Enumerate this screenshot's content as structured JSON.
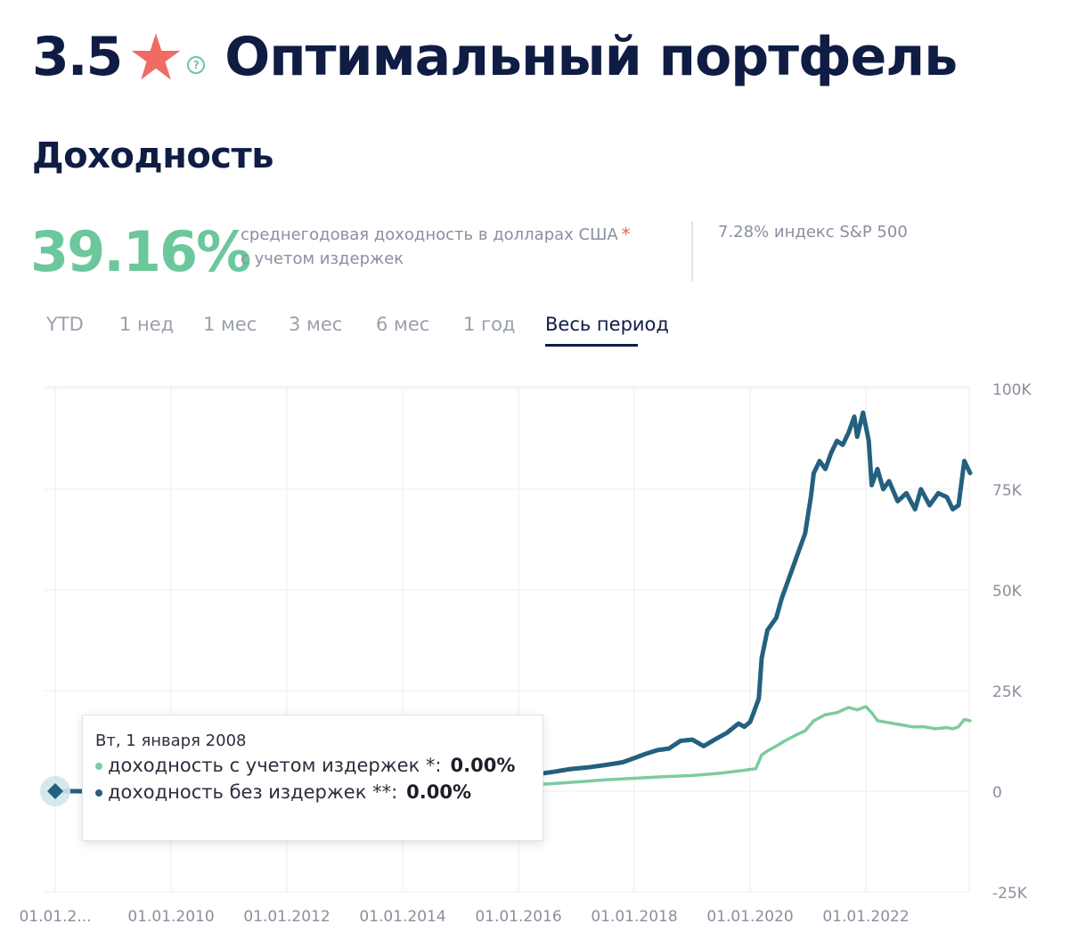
{
  "header": {
    "rating": "3.5",
    "star_icon": "star-icon",
    "help_icon": "question-icon",
    "help_glyph": "?",
    "title": "Оптимальный портфель"
  },
  "section": {
    "title": "Доходность"
  },
  "summary": {
    "yield": "39.16%",
    "desc_line1": "среднегодовая доходность в долларах США",
    "asterisk": "*",
    "desc_line2": "с учетом издержек",
    "sp_index": "7.28% индекс S&P 500"
  },
  "tabs": [
    {
      "label": "YTD"
    },
    {
      "label": "1 нед"
    },
    {
      "label": "1 мес"
    },
    {
      "label": "3 мес"
    },
    {
      "label": "6 мес"
    },
    {
      "label": "1 год"
    },
    {
      "label": "Весь период",
      "active": true
    }
  ],
  "colors": {
    "with_costs": "#7dcb9f",
    "without_costs": "#24607f",
    "star": "#ef6b63",
    "accent_green": "#6cc79c"
  },
  "tooltip": {
    "date": "Вт, 1 января 2008",
    "row1_label": "доходность с учетом издержек *:",
    "row1_value": "0.00%",
    "row2_label": "доходность без издержек **:",
    "row2_value": "0.00%"
  },
  "chart_data": {
    "type": "line",
    "x_tick_labels": [
      "01.01.2...",
      "01.01.2010",
      "01.01.2012",
      "01.01.2014",
      "01.01.2016",
      "01.01.2018",
      "01.01.2020",
      "01.01.2022"
    ],
    "x_tick_years": [
      2008,
      2010,
      2012,
      2014,
      2016,
      2018,
      2020,
      2022
    ],
    "xlim": [
      2008,
      2023.8
    ],
    "y_ticks": [
      -25000,
      0,
      25000,
      50000,
      75000,
      100000
    ],
    "y_tick_labels": [
      "-25K",
      "0",
      "25K",
      "50K",
      "75K",
      "100K"
    ],
    "ylim": [
      -25000,
      100000
    ],
    "grid": true,
    "series": [
      {
        "name": "доходность без издержек **",
        "color": "#24607f",
        "points": [
          [
            2016.0,
            3800
          ],
          [
            2016.3,
            4200
          ],
          [
            2016.6,
            4800
          ],
          [
            2016.9,
            5500
          ],
          [
            2017.2,
            5900
          ],
          [
            2017.5,
            6500
          ],
          [
            2017.8,
            7200
          ],
          [
            2018.0,
            8200
          ],
          [
            2018.2,
            9300
          ],
          [
            2018.4,
            10200
          ],
          [
            2018.6,
            10600
          ],
          [
            2018.8,
            12500
          ],
          [
            2019.0,
            12800
          ],
          [
            2019.2,
            11200
          ],
          [
            2019.4,
            12900
          ],
          [
            2019.6,
            14500
          ],
          [
            2019.8,
            16800
          ],
          [
            2019.9,
            16000
          ],
          [
            2020.0,
            17200
          ],
          [
            2020.05,
            19000
          ],
          [
            2020.15,
            23000
          ],
          [
            2020.2,
            33000
          ],
          [
            2020.3,
            40000
          ],
          [
            2020.45,
            43000
          ],
          [
            2020.55,
            48000
          ],
          [
            2020.7,
            54000
          ],
          [
            2020.85,
            60000
          ],
          [
            2020.95,
            64000
          ],
          [
            2021.05,
            73000
          ],
          [
            2021.1,
            79000
          ],
          [
            2021.2,
            82000
          ],
          [
            2021.3,
            80000
          ],
          [
            2021.4,
            84000
          ],
          [
            2021.5,
            87000
          ],
          [
            2021.6,
            86000
          ],
          [
            2021.7,
            89000
          ],
          [
            2021.8,
            93000
          ],
          [
            2021.85,
            88000
          ],
          [
            2021.95,
            94000
          ],
          [
            2022.05,
            87000
          ],
          [
            2022.1,
            76000
          ],
          [
            2022.2,
            80000
          ],
          [
            2022.3,
            75000
          ],
          [
            2022.4,
            77000
          ],
          [
            2022.55,
            72000
          ],
          [
            2022.7,
            74000
          ],
          [
            2022.85,
            70000
          ],
          [
            2022.95,
            75000
          ],
          [
            2023.1,
            71000
          ],
          [
            2023.25,
            74000
          ],
          [
            2023.4,
            73000
          ],
          [
            2023.5,
            70000
          ],
          [
            2023.6,
            71000
          ],
          [
            2023.7,
            82000
          ],
          [
            2023.8,
            79000
          ]
        ]
      },
      {
        "name": "доходность с учетом издержек *",
        "color": "#7dcb9f",
        "points": [
          [
            2016.0,
            1600
          ],
          [
            2016.5,
            1800
          ],
          [
            2017.0,
            2300
          ],
          [
            2017.5,
            2800
          ],
          [
            2018.0,
            3200
          ],
          [
            2018.5,
            3600
          ],
          [
            2019.0,
            3900
          ],
          [
            2019.5,
            4500
          ],
          [
            2019.9,
            5200
          ],
          [
            2020.1,
            5600
          ],
          [
            2020.2,
            9000
          ],
          [
            2020.3,
            10000
          ],
          [
            2020.45,
            11200
          ],
          [
            2020.6,
            12500
          ],
          [
            2020.8,
            14000
          ],
          [
            2020.95,
            15000
          ],
          [
            2021.1,
            17500
          ],
          [
            2021.3,
            19000
          ],
          [
            2021.5,
            19500
          ],
          [
            2021.7,
            20800
          ],
          [
            2021.85,
            20200
          ],
          [
            2022.0,
            21000
          ],
          [
            2022.1,
            19500
          ],
          [
            2022.2,
            17500
          ],
          [
            2022.4,
            17000
          ],
          [
            2022.6,
            16500
          ],
          [
            2022.8,
            16000
          ],
          [
            2023.0,
            16000
          ],
          [
            2023.2,
            15500
          ],
          [
            2023.4,
            15800
          ],
          [
            2023.5,
            15500
          ],
          [
            2023.6,
            16000
          ],
          [
            2023.7,
            17800
          ],
          [
            2023.8,
            17500
          ]
        ]
      }
    ],
    "highlight_point": {
      "x": 2008,
      "y": 0
    }
  }
}
